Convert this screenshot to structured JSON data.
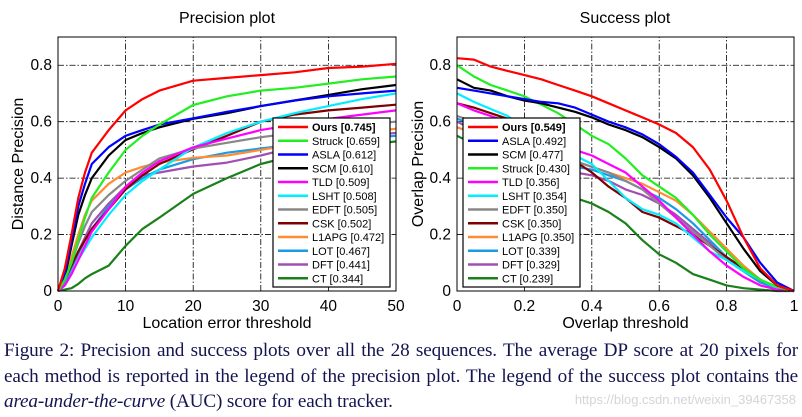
{
  "chart_data": [
    {
      "type": "line",
      "title": "Precision plot",
      "xlabel": "Location error threshold",
      "ylabel": "Distance Precision",
      "xlim": [
        0,
        50
      ],
      "ylim": [
        0,
        0.9
      ],
      "xticks": [
        "0",
        "10",
        "20",
        "30",
        "40",
        "50"
      ],
      "yticks": [
        "0",
        "0.2",
        "0.4",
        "0.6",
        "0.8"
      ],
      "grid": true,
      "legend_position": "bottom-right",
      "x": [
        0,
        1,
        2,
        3,
        4,
        5,
        7.5,
        10,
        12.5,
        15,
        20,
        25,
        30,
        35,
        40,
        45,
        50
      ],
      "series": [
        {
          "name": "Ours [0.745]",
          "color": "#ff0000",
          "bold": true,
          "values": [
            0,
            0.08,
            0.2,
            0.33,
            0.42,
            0.49,
            0.57,
            0.64,
            0.68,
            0.71,
            0.745,
            0.755,
            0.765,
            0.775,
            0.79,
            0.795,
            0.805
          ]
        },
        {
          "name": "Struck [0.659]",
          "color": "#22ee22",
          "values": [
            0,
            0.04,
            0.1,
            0.18,
            0.26,
            0.33,
            0.42,
            0.5,
            0.55,
            0.59,
            0.659,
            0.69,
            0.71,
            0.72,
            0.735,
            0.75,
            0.76
          ]
        },
        {
          "name": "ASLA [0.612]",
          "color": "#0000ff",
          "values": [
            0,
            0.06,
            0.18,
            0.3,
            0.38,
            0.45,
            0.51,
            0.55,
            0.57,
            0.59,
            0.612,
            0.635,
            0.655,
            0.675,
            0.69,
            0.7,
            0.71
          ]
        },
        {
          "name": "SCM [0.610]",
          "color": "#000000",
          "values": [
            0,
            0.05,
            0.16,
            0.27,
            0.34,
            0.4,
            0.48,
            0.535,
            0.56,
            0.58,
            0.61,
            0.63,
            0.655,
            0.675,
            0.695,
            0.715,
            0.73
          ]
        },
        {
          "name": "TLD [0.509]",
          "color": "#ff00ff",
          "values": [
            0,
            0.02,
            0.06,
            0.11,
            0.16,
            0.21,
            0.29,
            0.37,
            0.42,
            0.46,
            0.509,
            0.54,
            0.57,
            0.59,
            0.61,
            0.625,
            0.64
          ]
        },
        {
          "name": "LSHT [0.508]",
          "color": "#00eeff",
          "values": [
            0,
            0.02,
            0.06,
            0.11,
            0.15,
            0.19,
            0.27,
            0.34,
            0.39,
            0.43,
            0.508,
            0.56,
            0.6,
            0.63,
            0.655,
            0.68,
            0.7
          ]
        },
        {
          "name": "EDFT [0.505]",
          "color": "#888888",
          "values": [
            0,
            0.04,
            0.1,
            0.17,
            0.23,
            0.28,
            0.34,
            0.39,
            0.43,
            0.47,
            0.505,
            0.525,
            0.545,
            0.56,
            0.575,
            0.59,
            0.6
          ]
        },
        {
          "name": "CSK [0.502]",
          "color": "#7f0000",
          "values": [
            0,
            0.04,
            0.09,
            0.14,
            0.18,
            0.22,
            0.29,
            0.36,
            0.41,
            0.45,
            0.502,
            0.55,
            0.6,
            0.625,
            0.64,
            0.65,
            0.66
          ]
        },
        {
          "name": "L1APG [0.472]",
          "color": "#ff8c33",
          "values": [
            0,
            0.05,
            0.12,
            0.2,
            0.27,
            0.32,
            0.38,
            0.42,
            0.44,
            0.455,
            0.472,
            0.48,
            0.5,
            0.52,
            0.54,
            0.56,
            0.575
          ]
        },
        {
          "name": "LOT [0.467]",
          "color": "#1a9be6",
          "values": [
            0,
            0.03,
            0.08,
            0.13,
            0.18,
            0.22,
            0.3,
            0.36,
            0.4,
            0.43,
            0.467,
            0.49,
            0.505,
            0.52,
            0.53,
            0.54,
            0.55
          ]
        },
        {
          "name": "DFT [0.441]",
          "color": "#a050b0",
          "values": [
            0,
            0.03,
            0.08,
            0.14,
            0.19,
            0.24,
            0.31,
            0.37,
            0.41,
            0.42,
            0.441,
            0.455,
            0.48,
            0.51,
            0.53,
            0.55,
            0.56
          ]
        },
        {
          "name": "CT [0.344]",
          "color": "#1a801a",
          "values": [
            0,
            0.005,
            0.01,
            0.025,
            0.045,
            0.06,
            0.09,
            0.16,
            0.22,
            0.26,
            0.344,
            0.4,
            0.45,
            0.48,
            0.5,
            0.515,
            0.53
          ]
        }
      ]
    },
    {
      "type": "line",
      "title": "Success plot",
      "xlabel": "Overlap threshold",
      "ylabel": "Overlap Precision",
      "xlim": [
        0,
        1
      ],
      "ylim": [
        0,
        0.9
      ],
      "xticks": [
        "0",
        "0.2",
        "0.4",
        "0.6",
        "0.8",
        "1"
      ],
      "yticks": [
        "0",
        "0.2",
        "0.4",
        "0.6",
        "0.8"
      ],
      "grid": true,
      "legend_position": "bottom-left",
      "x": [
        0,
        0.05,
        0.1,
        0.15,
        0.2,
        0.25,
        0.3,
        0.35,
        0.4,
        0.45,
        0.5,
        0.55,
        0.6,
        0.65,
        0.7,
        0.75,
        0.8,
        0.85,
        0.9,
        0.95,
        1
      ],
      "series": [
        {
          "name": "Ours [0.549]",
          "color": "#ff0000",
          "bold": true,
          "values": [
            0.825,
            0.82,
            0.795,
            0.78,
            0.765,
            0.75,
            0.73,
            0.71,
            0.69,
            0.665,
            0.64,
            0.615,
            0.59,
            0.56,
            0.51,
            0.43,
            0.32,
            0.19,
            0.08,
            0.02,
            0
          ]
        },
        {
          "name": "ASLA [0.492]",
          "color": "#0000ff",
          "values": [
            0.72,
            0.71,
            0.7,
            0.69,
            0.68,
            0.67,
            0.665,
            0.65,
            0.625,
            0.6,
            0.58,
            0.555,
            0.52,
            0.475,
            0.42,
            0.34,
            0.26,
            0.19,
            0.1,
            0.03,
            0
          ]
        },
        {
          "name": "SCM [0.477]",
          "color": "#000000",
          "values": [
            0.75,
            0.72,
            0.71,
            0.69,
            0.675,
            0.665,
            0.65,
            0.635,
            0.615,
            0.59,
            0.57,
            0.545,
            0.51,
            0.47,
            0.41,
            0.33,
            0.24,
            0.15,
            0.07,
            0.02,
            0
          ]
        },
        {
          "name": "Struck [0.430]",
          "color": "#22ee22",
          "values": [
            0.8,
            0.76,
            0.73,
            0.71,
            0.69,
            0.66,
            0.63,
            0.59,
            0.55,
            0.52,
            0.47,
            0.41,
            0.37,
            0.33,
            0.27,
            0.2,
            0.14,
            0.08,
            0.04,
            0.015,
            0
          ]
        },
        {
          "name": "TLD [0.356]",
          "color": "#ff00ff",
          "values": [
            0.665,
            0.64,
            0.62,
            0.6,
            0.58,
            0.55,
            0.52,
            0.5,
            0.48,
            0.45,
            0.42,
            0.37,
            0.32,
            0.26,
            0.2,
            0.14,
            0.09,
            0.05,
            0.02,
            0.005,
            0
          ]
        },
        {
          "name": "LSHT [0.354]",
          "color": "#00eeff",
          "values": [
            0.7,
            0.67,
            0.645,
            0.62,
            0.58,
            0.54,
            0.5,
            0.48,
            0.45,
            0.39,
            0.33,
            0.29,
            0.27,
            0.24,
            0.19,
            0.14,
            0.11,
            0.07,
            0.04,
            0.01,
            0
          ]
        },
        {
          "name": "EDFT [0.350]",
          "color": "#888888",
          "values": [
            0.62,
            0.6,
            0.58,
            0.56,
            0.53,
            0.5,
            0.48,
            0.46,
            0.44,
            0.42,
            0.39,
            0.36,
            0.31,
            0.26,
            0.21,
            0.16,
            0.11,
            0.07,
            0.04,
            0.01,
            0
          ]
        },
        {
          "name": "CSK [0.350]",
          "color": "#7f0000",
          "values": [
            0.665,
            0.65,
            0.63,
            0.61,
            0.58,
            0.54,
            0.5,
            0.46,
            0.42,
            0.37,
            0.33,
            0.28,
            0.26,
            0.23,
            0.2,
            0.16,
            0.12,
            0.08,
            0.04,
            0.01,
            0
          ]
        },
        {
          "name": "L1APG [0.350]",
          "color": "#ff8c33",
          "values": [
            0.58,
            0.56,
            0.54,
            0.52,
            0.5,
            0.48,
            0.47,
            0.46,
            0.44,
            0.42,
            0.4,
            0.38,
            0.35,
            0.32,
            0.27,
            0.21,
            0.15,
            0.09,
            0.04,
            0.01,
            0
          ]
        },
        {
          "name": "LOT [0.339]",
          "color": "#1a9be6",
          "values": [
            0.61,
            0.59,
            0.56,
            0.53,
            0.5,
            0.47,
            0.45,
            0.44,
            0.43,
            0.41,
            0.39,
            0.36,
            0.33,
            0.29,
            0.24,
            0.18,
            0.12,
            0.07,
            0.03,
            0.01,
            0
          ]
        },
        {
          "name": "DFT [0.329]",
          "color": "#a050b0",
          "values": [
            0.6,
            0.57,
            0.55,
            0.52,
            0.49,
            0.46,
            0.44,
            0.42,
            0.41,
            0.39,
            0.36,
            0.34,
            0.31,
            0.27,
            0.22,
            0.17,
            0.11,
            0.07,
            0.03,
            0.01,
            0
          ]
        },
        {
          "name": "CT [0.239]",
          "color": "#1a801a",
          "values": [
            0.55,
            0.52,
            0.49,
            0.46,
            0.43,
            0.4,
            0.36,
            0.33,
            0.31,
            0.28,
            0.24,
            0.18,
            0.13,
            0.1,
            0.06,
            0.04,
            0.02,
            0.01,
            0.005,
            0,
            0
          ]
        }
      ]
    }
  ],
  "caption": {
    "part1": "Figure 2: Precision and success plots over all the 28 sequences. The average DP score at 20 pixels for each method is reported in the legend of the precision plot. The legend of the success plot contains the ",
    "italic": "area-under-the-curve",
    "part2": " (AUC) score for each tracker."
  },
  "watermark": "https://blog.csdn.net/weixin_39467358"
}
